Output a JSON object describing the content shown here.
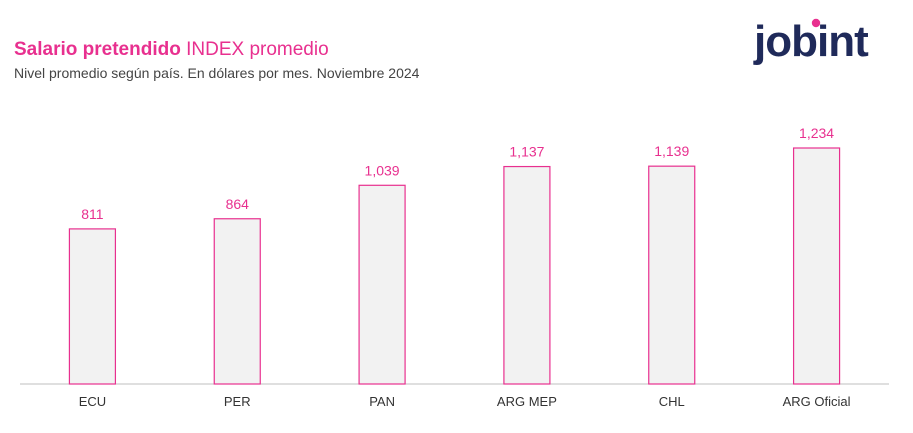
{
  "header": {
    "title_bold": "Salario pretendido",
    "title_rest": "INDEX promedio",
    "subtitle": "Nivel promedio según país. En dólares por mes. Noviembre 2024"
  },
  "logo": {
    "text": "jobint",
    "color": "#1f2a5a",
    "accent": "#e8308f"
  },
  "colors": {
    "accent": "#e8308f",
    "bar_fill": "#f2f2f2",
    "bar_stroke": "#e8308f",
    "axis": "#bfbfbf",
    "tick_text": "#333333"
  },
  "chart_data": {
    "type": "bar",
    "categories": [
      "ECU",
      "PER",
      "PAN",
      "ARG MEP",
      "CHL",
      "ARG Oficial"
    ],
    "values": [
      811,
      864,
      1039,
      1137,
      1139,
      1234
    ],
    "value_labels": [
      "811",
      "864",
      "1,039",
      "1,137",
      "1,139",
      "1,234"
    ],
    "title": "Salario pretendido INDEX promedio",
    "subtitle": "Nivel promedio según país. En dólares por mes. Noviembre 2024",
    "xlabel": "",
    "ylabel": "",
    "ylim": [
      0,
      1234
    ],
    "grid": false,
    "legend": "none"
  }
}
